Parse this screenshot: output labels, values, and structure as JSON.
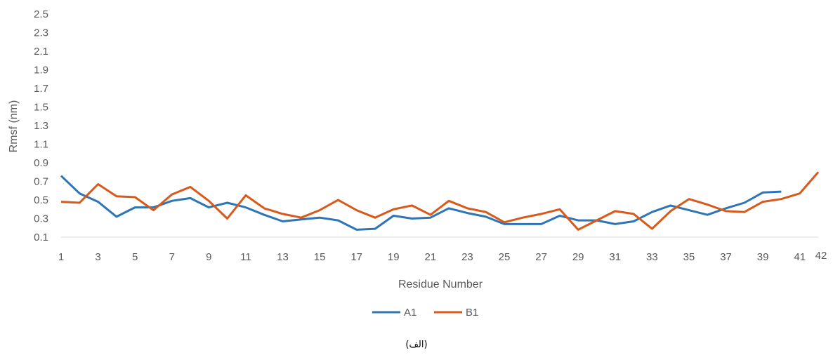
{
  "caption": "(الف)",
  "chart_data": {
    "type": "line",
    "title": "",
    "xlabel": "Residue Number",
    "ylabel": "Rmsf (nm)",
    "ylim": [
      0.1,
      2.5
    ],
    "yticks": [
      "0.1",
      "0.3",
      "0.5",
      "0.7",
      "0.9",
      "1.1",
      "1.3",
      "1.5",
      "1.7",
      "1.9",
      "2.1",
      "2.3",
      "2.5"
    ],
    "xticks": [
      "1",
      "3",
      "5",
      "7",
      "9",
      "11",
      "13",
      "15",
      "17",
      "19",
      "21",
      "23",
      "25",
      "27",
      "29",
      "31",
      "33",
      "35",
      "37",
      "39",
      "41",
      "42"
    ],
    "grid": false,
    "legend": "bottom-center",
    "series": [
      {
        "name": "A1",
        "color": "#2E75B6",
        "x": [
          1,
          2,
          3,
          4,
          5,
          6,
          7,
          8,
          9,
          10,
          11,
          12,
          13,
          14,
          15,
          16,
          17,
          18,
          19,
          20,
          21,
          22,
          23,
          24,
          25,
          26,
          27,
          28,
          29,
          30,
          31,
          32,
          33,
          34,
          35,
          36,
          37,
          38,
          39,
          40
        ],
        "values": [
          0.76,
          0.57,
          0.48,
          0.32,
          0.42,
          0.42,
          0.49,
          0.52,
          0.42,
          0.47,
          0.42,
          0.34,
          0.27,
          0.29,
          0.31,
          0.28,
          0.18,
          0.19,
          0.33,
          0.3,
          0.31,
          0.41,
          0.36,
          0.32,
          0.24,
          0.24,
          0.24,
          0.33,
          0.28,
          0.28,
          0.24,
          0.27,
          0.37,
          0.44,
          0.39,
          0.34,
          0.41,
          0.47,
          0.58,
          0.59
        ]
      },
      {
        "name": "B1",
        "color": "#D9591A",
        "x": [
          1,
          2,
          3,
          4,
          5,
          6,
          7,
          8,
          9,
          10,
          11,
          12,
          13,
          14,
          15,
          16,
          17,
          18,
          19,
          20,
          21,
          22,
          23,
          24,
          25,
          26,
          27,
          28,
          29,
          30,
          31,
          32,
          33,
          34,
          35,
          36,
          37,
          38,
          39,
          40,
          41,
          42
        ],
        "values": [
          0.48,
          0.47,
          0.67,
          0.54,
          0.53,
          0.39,
          0.56,
          0.64,
          0.49,
          0.3,
          0.55,
          0.41,
          0.35,
          0.31,
          0.39,
          0.5,
          0.39,
          0.31,
          0.4,
          0.44,
          0.34,
          0.49,
          0.41,
          0.37,
          0.26,
          0.31,
          0.35,
          0.4,
          0.18,
          0.28,
          0.38,
          0.35,
          0.19,
          0.38,
          0.51,
          0.45,
          0.38,
          0.37,
          0.48,
          0.51,
          0.57,
          0.8
        ]
      }
    ]
  }
}
